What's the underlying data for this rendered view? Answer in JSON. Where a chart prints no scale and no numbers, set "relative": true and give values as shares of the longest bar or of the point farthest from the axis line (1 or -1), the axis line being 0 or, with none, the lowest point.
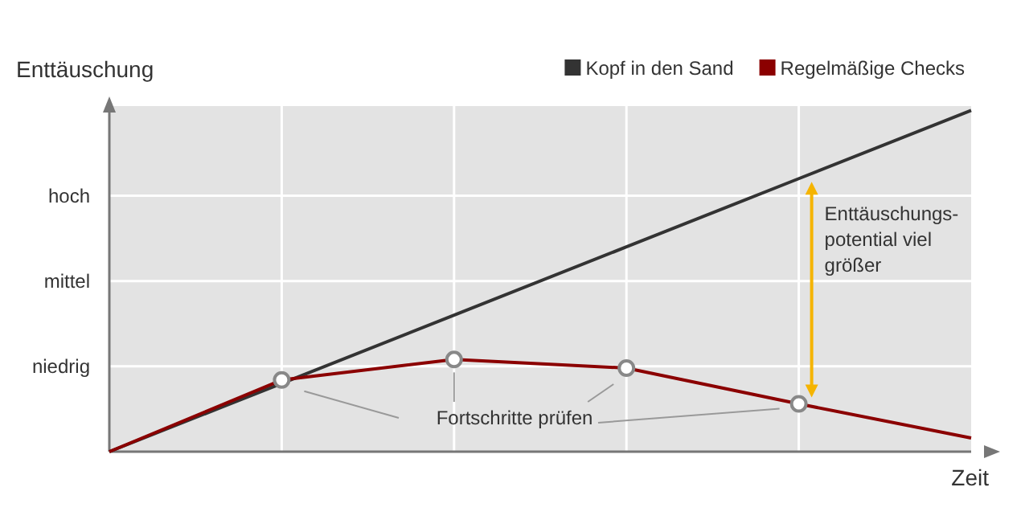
{
  "chart_data": {
    "type": "line",
    "xlabel": "Zeit",
    "ylabel": "Enttäuschung",
    "categories": [
      null,
      null,
      null,
      null,
      null,
      null
    ],
    "relative": true,
    "series": [
      {
        "name": "Kopf in den Sand",
        "color": "#333333",
        "values": [
          0,
          0.2,
          0.4,
          0.6,
          0.8,
          1.0
        ],
        "marker": "none"
      },
      {
        "name": "Regelmäßige Checks",
        "color": "#8b0000",
        "values": [
          0,
          0.21,
          0.27,
          0.245,
          0.14,
          0.04
        ],
        "marker": "circle"
      }
    ],
    "grid": true,
    "legend": "top right",
    "line_style": "solid",
    "annotations": [
      "niedrig",
      "mittel",
      "hoch",
      "Fortschritte prüfen",
      "Enttäuschungs-\npotential viel\ngrößer"
    ]
  }
}
